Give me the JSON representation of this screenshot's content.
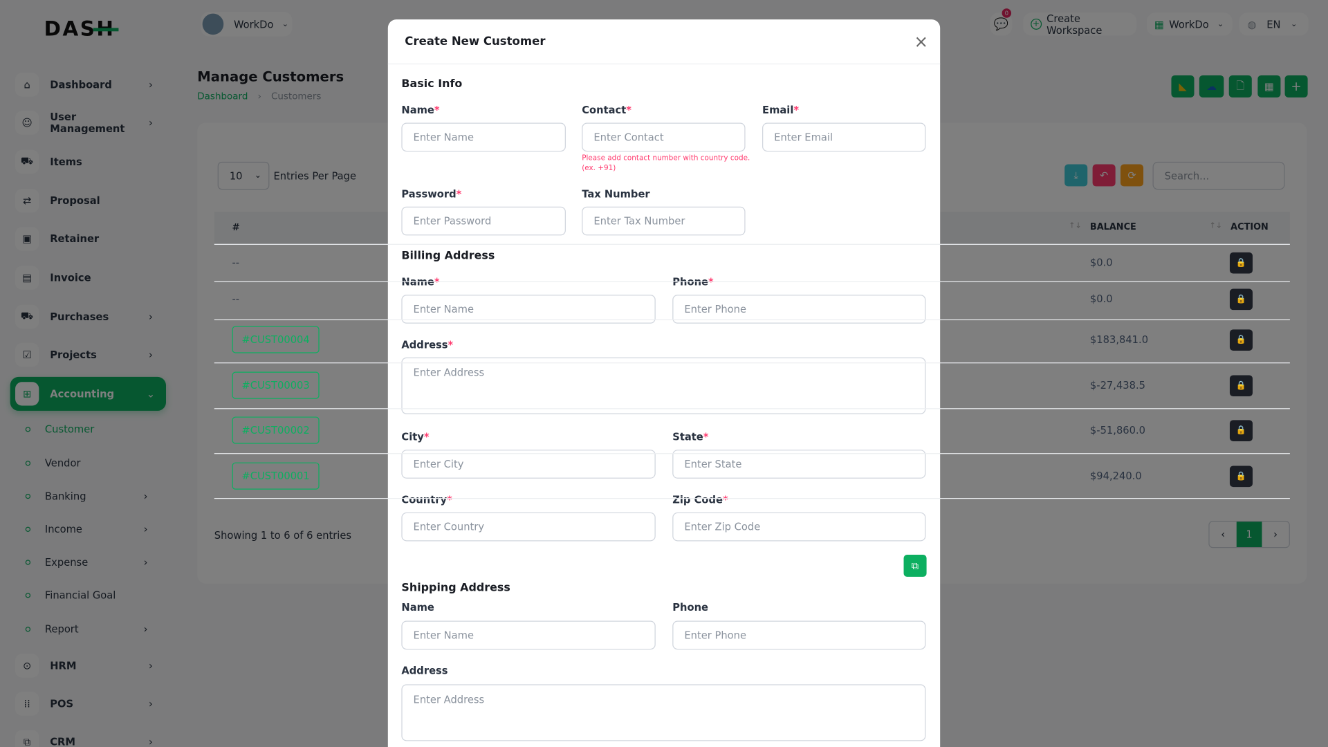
{
  "brand": {
    "logo_text": "DASH",
    "accent": "#0CAF60"
  },
  "sidebar": {
    "items": [
      {
        "label": "Dashboard",
        "icon": "home-icon",
        "chevron": true
      },
      {
        "label": "User Management",
        "icon": "users-icon",
        "chevron": true
      },
      {
        "label": "Items",
        "icon": "cart-icon",
        "chevron": false
      },
      {
        "label": "Proposal",
        "icon": "proposal-icon",
        "chevron": false
      },
      {
        "label": "Retainer",
        "icon": "retainer-icon",
        "chevron": false
      },
      {
        "label": "Invoice",
        "icon": "invoice-icon",
        "chevron": false
      },
      {
        "label": "Purchases",
        "icon": "cart-icon",
        "chevron": true
      },
      {
        "label": "Projects",
        "icon": "checkbox-icon",
        "chevron": true
      },
      {
        "label": "Accounting",
        "icon": "apps-add-icon",
        "chevron": true,
        "active": true
      }
    ],
    "sub_items": [
      {
        "label": "Customer",
        "chevron": false,
        "active": true
      },
      {
        "label": "Vendor",
        "chevron": false
      },
      {
        "label": "Banking",
        "chevron": true
      },
      {
        "label": "Income",
        "chevron": true
      },
      {
        "label": "Expense",
        "chevron": true
      },
      {
        "label": "Financial Goal",
        "chevron": false
      },
      {
        "label": "Report",
        "chevron": true
      }
    ],
    "bottom_items": [
      {
        "label": "HRM",
        "icon": "hrm-icon"
      },
      {
        "label": "POS",
        "icon": "grid-dots-icon"
      },
      {
        "label": "CRM",
        "icon": "crm-icon"
      }
    ]
  },
  "header": {
    "workspace": "WorkDo",
    "notification_count": "0",
    "create_workspace": "Create Workspace",
    "workspace_switch": "WorkDo",
    "language": "EN"
  },
  "page": {
    "title": "Manage Customers",
    "breadcrumb": [
      "Dashboard",
      "Customers"
    ]
  },
  "table": {
    "entries_value": "10",
    "entries_label": "Entries Per Page",
    "search_placeholder": "Search...",
    "columns": {
      "index": "#",
      "balance": "BALANCE",
      "action": "ACTION"
    },
    "rows": [
      {
        "id": "--",
        "balance": "$0.0"
      },
      {
        "id": "--",
        "balance": "$0.0"
      },
      {
        "id": "#CUST00004",
        "balance": "$183,841.0"
      },
      {
        "id": "#CUST00003",
        "balance": "$-27,438.5"
      },
      {
        "id": "#CUST00002",
        "balance": "$-51,860.0"
      },
      {
        "id": "#CUST00001",
        "balance": "$94,240.0"
      }
    ],
    "showing": "Showing 1 to 6 of 6 entries",
    "current_page": "1"
  },
  "modal": {
    "title": "Create New Customer",
    "basic_info": "Basic Info",
    "name_label": "Name",
    "name_ph": "Enter Name",
    "contact_label": "Contact",
    "contact_ph": "Enter Contact",
    "contact_help": "Please add contact number with country code. (ex. +91)",
    "email_label": "Email",
    "email_ph": "Enter Email",
    "password_label": "Password",
    "password_ph": "Enter Password",
    "tax_label": "Tax Number",
    "tax_ph": "Enter Tax Number",
    "billing": {
      "title": "Billing Address",
      "name_label": "Name",
      "name_ph": "Enter Name",
      "phone_label": "Phone",
      "phone_ph": "Enter Phone",
      "address_label": "Address",
      "address_ph": "Enter Address",
      "city_label": "City",
      "city_ph": "Enter City",
      "state_label": "State",
      "state_ph": "Enter State",
      "country_label": "Country",
      "country_ph": "Enter Country",
      "zip_label": "Zip Code",
      "zip_ph": "Enter Zip Code"
    },
    "shipping": {
      "title": "Shipping Address",
      "name_label": "Name",
      "name_ph": "Enter Name",
      "phone_label": "Phone",
      "phone_ph": "Enter Phone",
      "address_label": "Address",
      "address_ph": "Enter Address"
    },
    "required_mark": "*"
  }
}
